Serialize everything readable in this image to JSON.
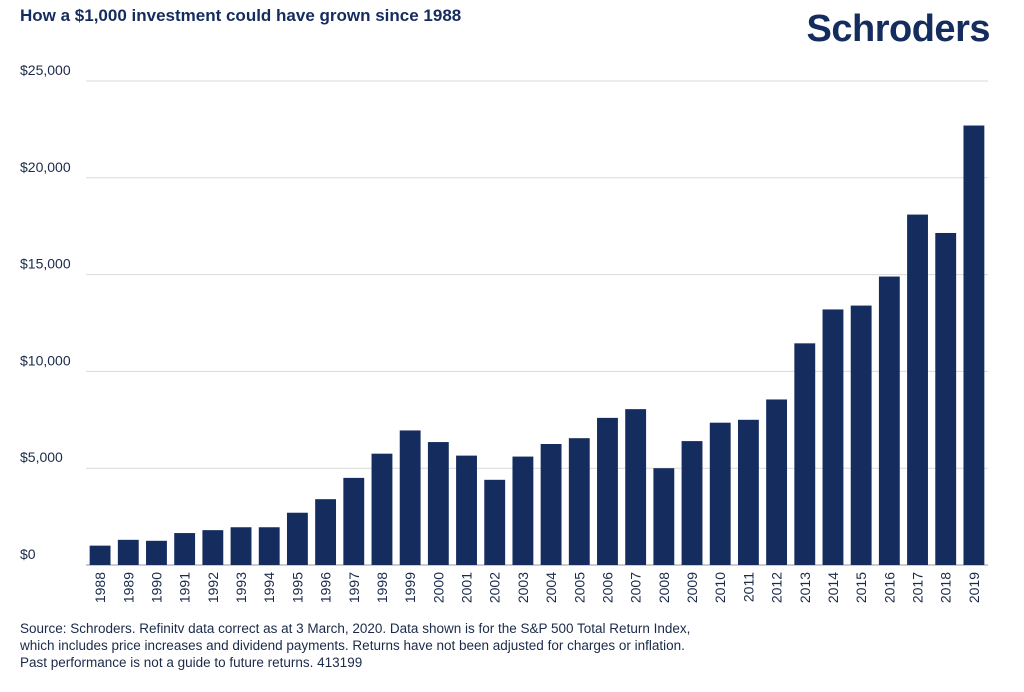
{
  "header": {
    "title": "How a $1,000 investment could have grown since 1988",
    "brand": "Schroders"
  },
  "footer": {
    "lines": [
      "Source: Schroders. Refinitv data correct as at 3 March, 2020. Data shown is for the S&P 500 Total Return Index,",
      "which includes price increases and dividend payments. Returns have not been adjusted for charges or inflation.",
      "Past performance is not a guide to future returns. 413199"
    ]
  },
  "colors": {
    "bar": "#142c5e",
    "grid": "#d9d9d9",
    "text": "#1b2a4a"
  },
  "chart_data": {
    "type": "bar",
    "title": "How a $1,000 investment could have grown since 1988",
    "categories": [
      "1988",
      "1989",
      "1990",
      "1991",
      "1992",
      "1993",
      "1994",
      "1995",
      "1996",
      "1997",
      "1998",
      "1999",
      "2000",
      "2001",
      "2002",
      "2003",
      "2004",
      "2005",
      "2006",
      "2007",
      "2008",
      "2009",
      "2010",
      "2011",
      "2012",
      "2013",
      "2014",
      "2015",
      "2016",
      "2017",
      "2018",
      "2019"
    ],
    "values": [
      1000,
      1300,
      1250,
      1650,
      1800,
      1950,
      1950,
      2700,
      3400,
      4500,
      5750,
      6950,
      6350,
      5650,
      4400,
      5600,
      6250,
      6550,
      7600,
      8050,
      5000,
      6400,
      7350,
      7500,
      8550,
      11450,
      13200,
      13400,
      14900,
      18100,
      17150,
      22700
    ],
    "yticks": [
      "$0",
      "$5,000",
      "$10,000",
      "$15,000",
      "$20,000",
      "$25,000"
    ],
    "ylim": [
      0,
      25000
    ],
    "xlabel": "",
    "ylabel": "",
    "grid": true
  }
}
